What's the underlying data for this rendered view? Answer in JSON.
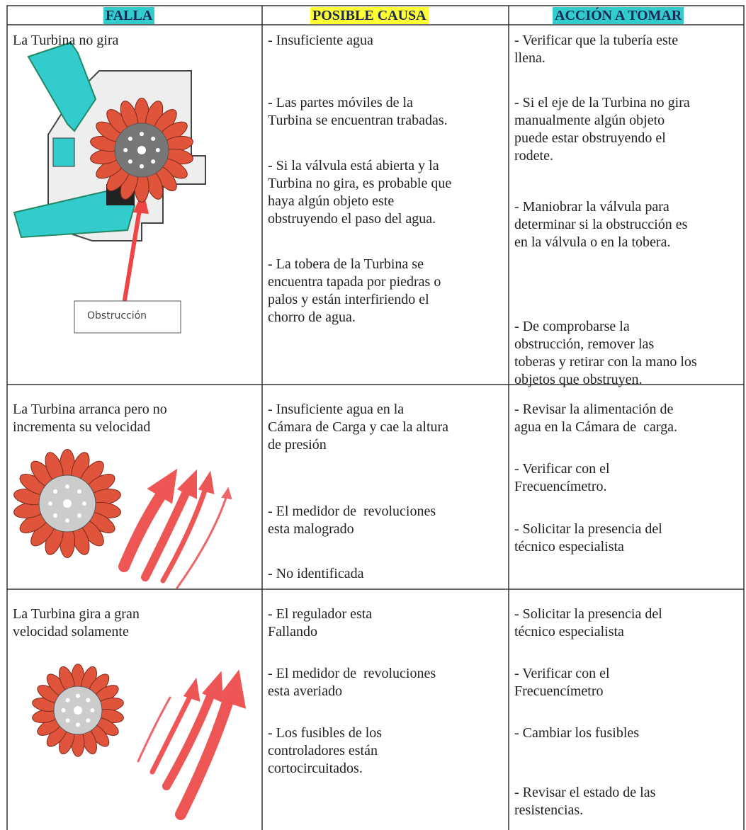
{
  "table": {
    "headers": [
      "FALLA",
      "POSIBLE CAUSA",
      "ACCIÓN A TOMAR"
    ],
    "image_label": "Obstrucción",
    "rows": [
      {
        "fault": [
          "La Turbina no gira"
        ],
        "causes": [
          [
            "- Insuficiente agua"
          ],
          [
            "- Las partes móviles de la",
            "Turbina se encuentran trabadas."
          ],
          [
            "- Si la válvula está abierta y la",
            "Turbina no gira, es probable que",
            "haya algún objeto este",
            "obstruyendo el paso del agua."
          ],
          [
            "- La tobera de la Turbina se",
            "encuentra tapada por piedras o",
            "palos y están interfiriendo el",
            "chorro de agua."
          ]
        ],
        "actions": [
          [
            "- Verificar que la tubería este",
            "llena."
          ],
          [
            "- Si el eje de la Turbina no gira",
            "manualmente algún objeto",
            "puede estar obstruyendo el",
            "rodete."
          ],
          [
            "- Maniobrar la válvula para",
            "determinar si la obstrucción es",
            "en la válvula o en la tobera."
          ],
          [
            "- De comprobarse la",
            "obstrucción, remover las",
            "toberas y retirar con la mano los",
            "objetos que obstruyen."
          ]
        ]
      },
      {
        "fault": [
          "La Turbina arranca pero no",
          "incrementa su velocidad"
        ],
        "causes": [
          [
            "- Insuficiente agua en la",
            "Cámara de Carga y cae la altura",
            "de presión"
          ],
          [
            "- El medidor de  revoluciones",
            "esta malogrado"
          ],
          [
            "- No identificada"
          ]
        ],
        "actions": [
          [
            "- Revisar la alimentación de",
            "agua en la Cámara de  carga."
          ],
          [
            "- Verificar con el",
            "Frecuencímetro."
          ],
          [
            "- Solicitar la presencia del",
            "técnico especialista"
          ]
        ]
      },
      {
        "fault": [
          "La Turbina gira a gran",
          "velocidad solamente"
        ],
        "causes": [
          [
            "- El regulador esta",
            "Fallando"
          ],
          [
            "- El medidor de  revoluciones",
            "esta averiado"
          ],
          [
            "- Los fusibles de los",
            "controladores están",
            "cortocircuitados."
          ]
        ],
        "actions": [
          [
            "- Solicitar la presencia del",
            "técnico especialista"
          ],
          [
            "- Verificar con el",
            "Frecuencímetro"
          ],
          [
            "- Cambiar los fusibles"
          ],
          [
            "- Revisar el estado de las",
            "resistencias."
          ]
        ]
      }
    ]
  }
}
